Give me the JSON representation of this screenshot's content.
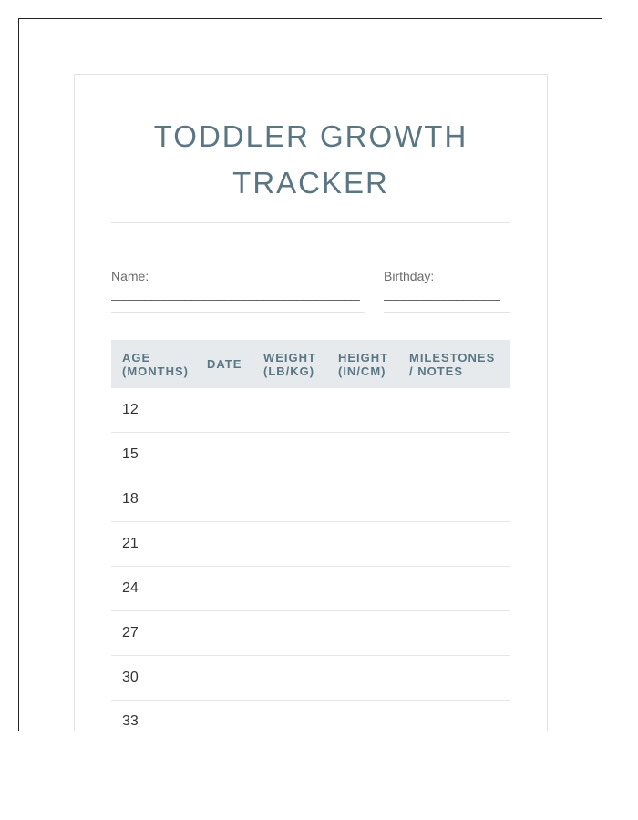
{
  "title": "TODDLER GROWTH TRACKER",
  "fields": {
    "name_label": "Name:",
    "name_line": "________________________________________",
    "birthday_label": "Birthday:",
    "birthday_line": "___________________"
  },
  "table": {
    "headers": [
      "AGE (MONTHS)",
      "DATE",
      "WEIGHT (LB/KG)",
      "HEIGHT (IN/CM)",
      "MILESTONES / NOTES"
    ],
    "rows": [
      "12",
      "15",
      "18",
      "21",
      "24",
      "27",
      "30",
      "33"
    ]
  },
  "colors": {
    "accent": "#5a7683",
    "header_bg": "#e6eaed"
  }
}
